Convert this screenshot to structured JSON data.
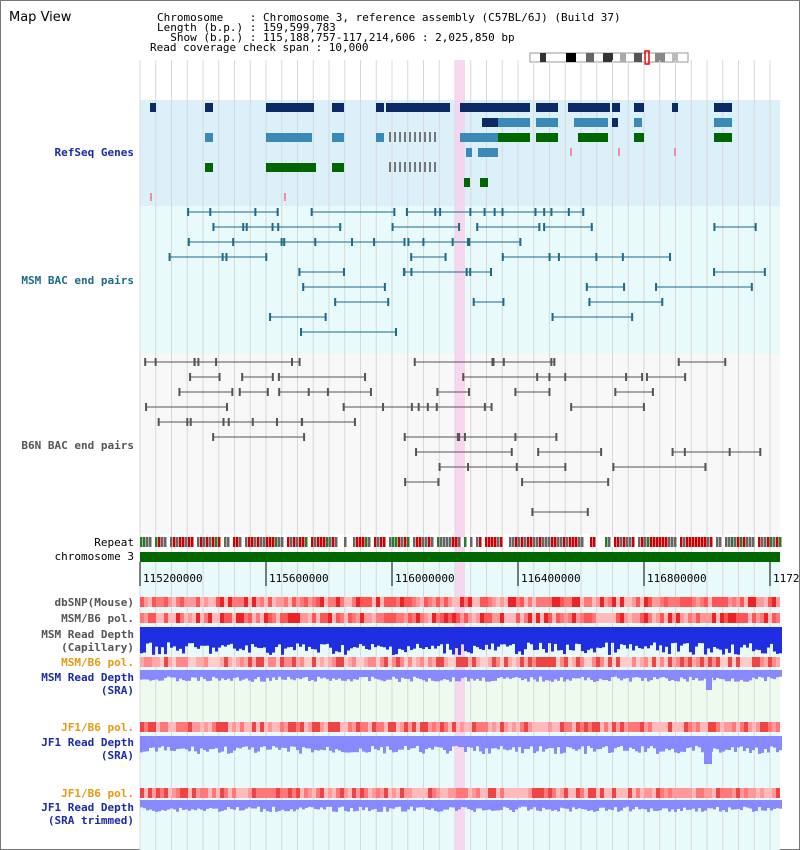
{
  "title": "Map View",
  "header": {
    "line1": "Chromosome    : Chromosome 3, reference assembly (C57BL/6J) (Build 37)",
    "line2": "Length (b.p.) : 159,599,783",
    "line3": "  Show (b.p.) : 115,188,757-117,214,606 : 2,025,850 bp",
    "line4": "Read coverage check span : 10,000"
  },
  "tracks": {
    "refseq": "RefSeq Genes",
    "msm_bac": "MSM BAC end pairs",
    "b6n_bac": "B6N BAC end pairs",
    "repeat": "Repeat",
    "chromosome": "chromosome 3",
    "dbsnp": "dbSNP(Mouse)",
    "msm_b6_pol": "MSM/B6 pol.",
    "msm_depth_cap_1": "MSM Read Depth",
    "msm_depth_cap_2": "(Capillary)",
    "msm_b6_pol_2": "MSM/B6 pol.",
    "msm_depth_sra_1": "MSM Read Depth",
    "msm_depth_sra_2": "(SRA)",
    "jf1_b6_pol": "JF1/B6 pol.",
    "jf1_depth_1": "JF1 Read Depth",
    "jf1_depth_2": "(SRA)",
    "jf1_b6_pol_2": "JF1/B6 pol.",
    "jf1_depth_trim_1": "JF1 Read Depth",
    "jf1_depth_trim_2": "(SRA trimmed)"
  },
  "axis": {
    "ticks": [
      "115200000",
      "115600000",
      "116000000",
      "116400000",
      "116800000",
      "11720"
    ]
  },
  "colors": {
    "refseq_bg": "#dcf0fa",
    "msm_bg": "#e8fafa",
    "b6n_bg": "#f8f8f8",
    "gene_dark": "#0b2a66",
    "gene_mid": "#3a8ab8",
    "gene_green": "#006600",
    "msm_line": "#1d6a8a",
    "b6n_line": "#555555",
    "highlight": "#f7d0ec",
    "chrom_green": "#006600",
    "depth_blue": "#1f2ee0",
    "depth_light": "#8888ff",
    "pol_red": "#ff5555"
  }
}
